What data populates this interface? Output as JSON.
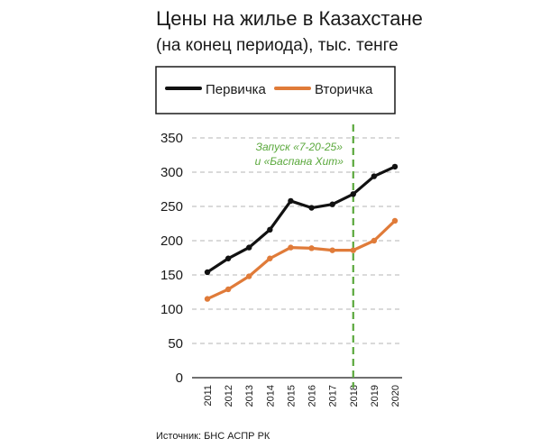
{
  "chart_data": {
    "type": "line",
    "title": "Цены на жилье в Казахстане",
    "subtitle": "(на конец периода), тыс. тенге",
    "x": [
      "2011",
      "2012",
      "2013",
      "2014",
      "2015",
      "2016",
      "2017",
      "2018",
      "2019",
      "2020"
    ],
    "series": [
      {
        "name": "Первичка",
        "color": "#111111",
        "values": [
          154,
          174,
          190,
          216,
          258,
          248,
          253,
          268,
          294,
          308
        ]
      },
      {
        "name": "Вторичка",
        "color": "#e07b39",
        "values": [
          115,
          129,
          148,
          174,
          190,
          189,
          186,
          186,
          200,
          229
        ]
      }
    ],
    "yticks": [
      0,
      50,
      100,
      150,
      200,
      250,
      300,
      350
    ],
    "ylim": [
      0,
      350
    ],
    "grid": true,
    "legend_position": "top",
    "marker": {
      "x": "2018",
      "color": "#5aa83c",
      "label_line1": "Запуск «7-20-25»",
      "label_line2": "и «Баспана Хит»"
    },
    "source": "Источник: БНС АСПР РК"
  }
}
